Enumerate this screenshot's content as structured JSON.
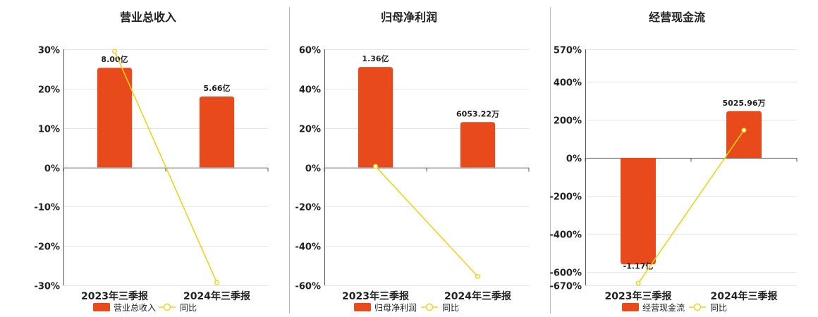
{
  "colors": {
    "bar": "#E84A1C",
    "line": "#F2D21A",
    "line_marker_fill": "#ffffff"
  },
  "legend": {
    "line_label": "同比"
  },
  "chart_data": [
    {
      "type": "bar",
      "title": "营业总收入",
      "categories": [
        "2023年三季报",
        "2024年三季报"
      ],
      "y_ticks": [
        "30%",
        "20%",
        "10%",
        "0%",
        "-10%",
        "-20%",
        "-30%"
      ],
      "ylim": [
        -30,
        30
      ],
      "series": [
        {
          "name": "营业总收入",
          "kind": "bar",
          "values": [
            25.3,
            18
          ],
          "labels": [
            "8.00亿",
            "5.66亿"
          ]
        },
        {
          "name": "同比",
          "kind": "line",
          "values": [
            29.5,
            -29.3
          ]
        }
      ]
    },
    {
      "type": "bar",
      "title": "归母净利润",
      "categories": [
        "2023年三季报",
        "2024年三季报"
      ],
      "y_ticks": [
        "60%",
        "40%",
        "20%",
        "0%",
        "-20%",
        "-40%",
        "-60%"
      ],
      "ylim": [
        -60,
        60
      ],
      "series": [
        {
          "name": "归母净利润",
          "kind": "bar",
          "values": [
            51,
            23
          ],
          "labels": [
            "1.36亿",
            "6053.22万"
          ]
        },
        {
          "name": "同比",
          "kind": "line",
          "values": [
            0.5,
            -55.5
          ]
        }
      ]
    },
    {
      "type": "bar",
      "title": "经营现金流",
      "categories": [
        "2023年三季报",
        "2024年三季报"
      ],
      "y_ticks": [
        "570%",
        "400%",
        "200%",
        "0%",
        "-200%",
        "-400%",
        "-600%",
        "-670%"
      ],
      "y_tick_values": [
        570,
        400,
        200,
        0,
        -200,
        -400,
        -600,
        -670
      ],
      "ylim": [
        -670,
        570
      ],
      "series": [
        {
          "name": "经营现金流",
          "kind": "bar",
          "values": [
            -560,
            245
          ],
          "labels": [
            "-1.17亿",
            "5025.96万"
          ]
        },
        {
          "name": "同比",
          "kind": "line",
          "values": [
            -660,
            145
          ]
        }
      ]
    }
  ]
}
